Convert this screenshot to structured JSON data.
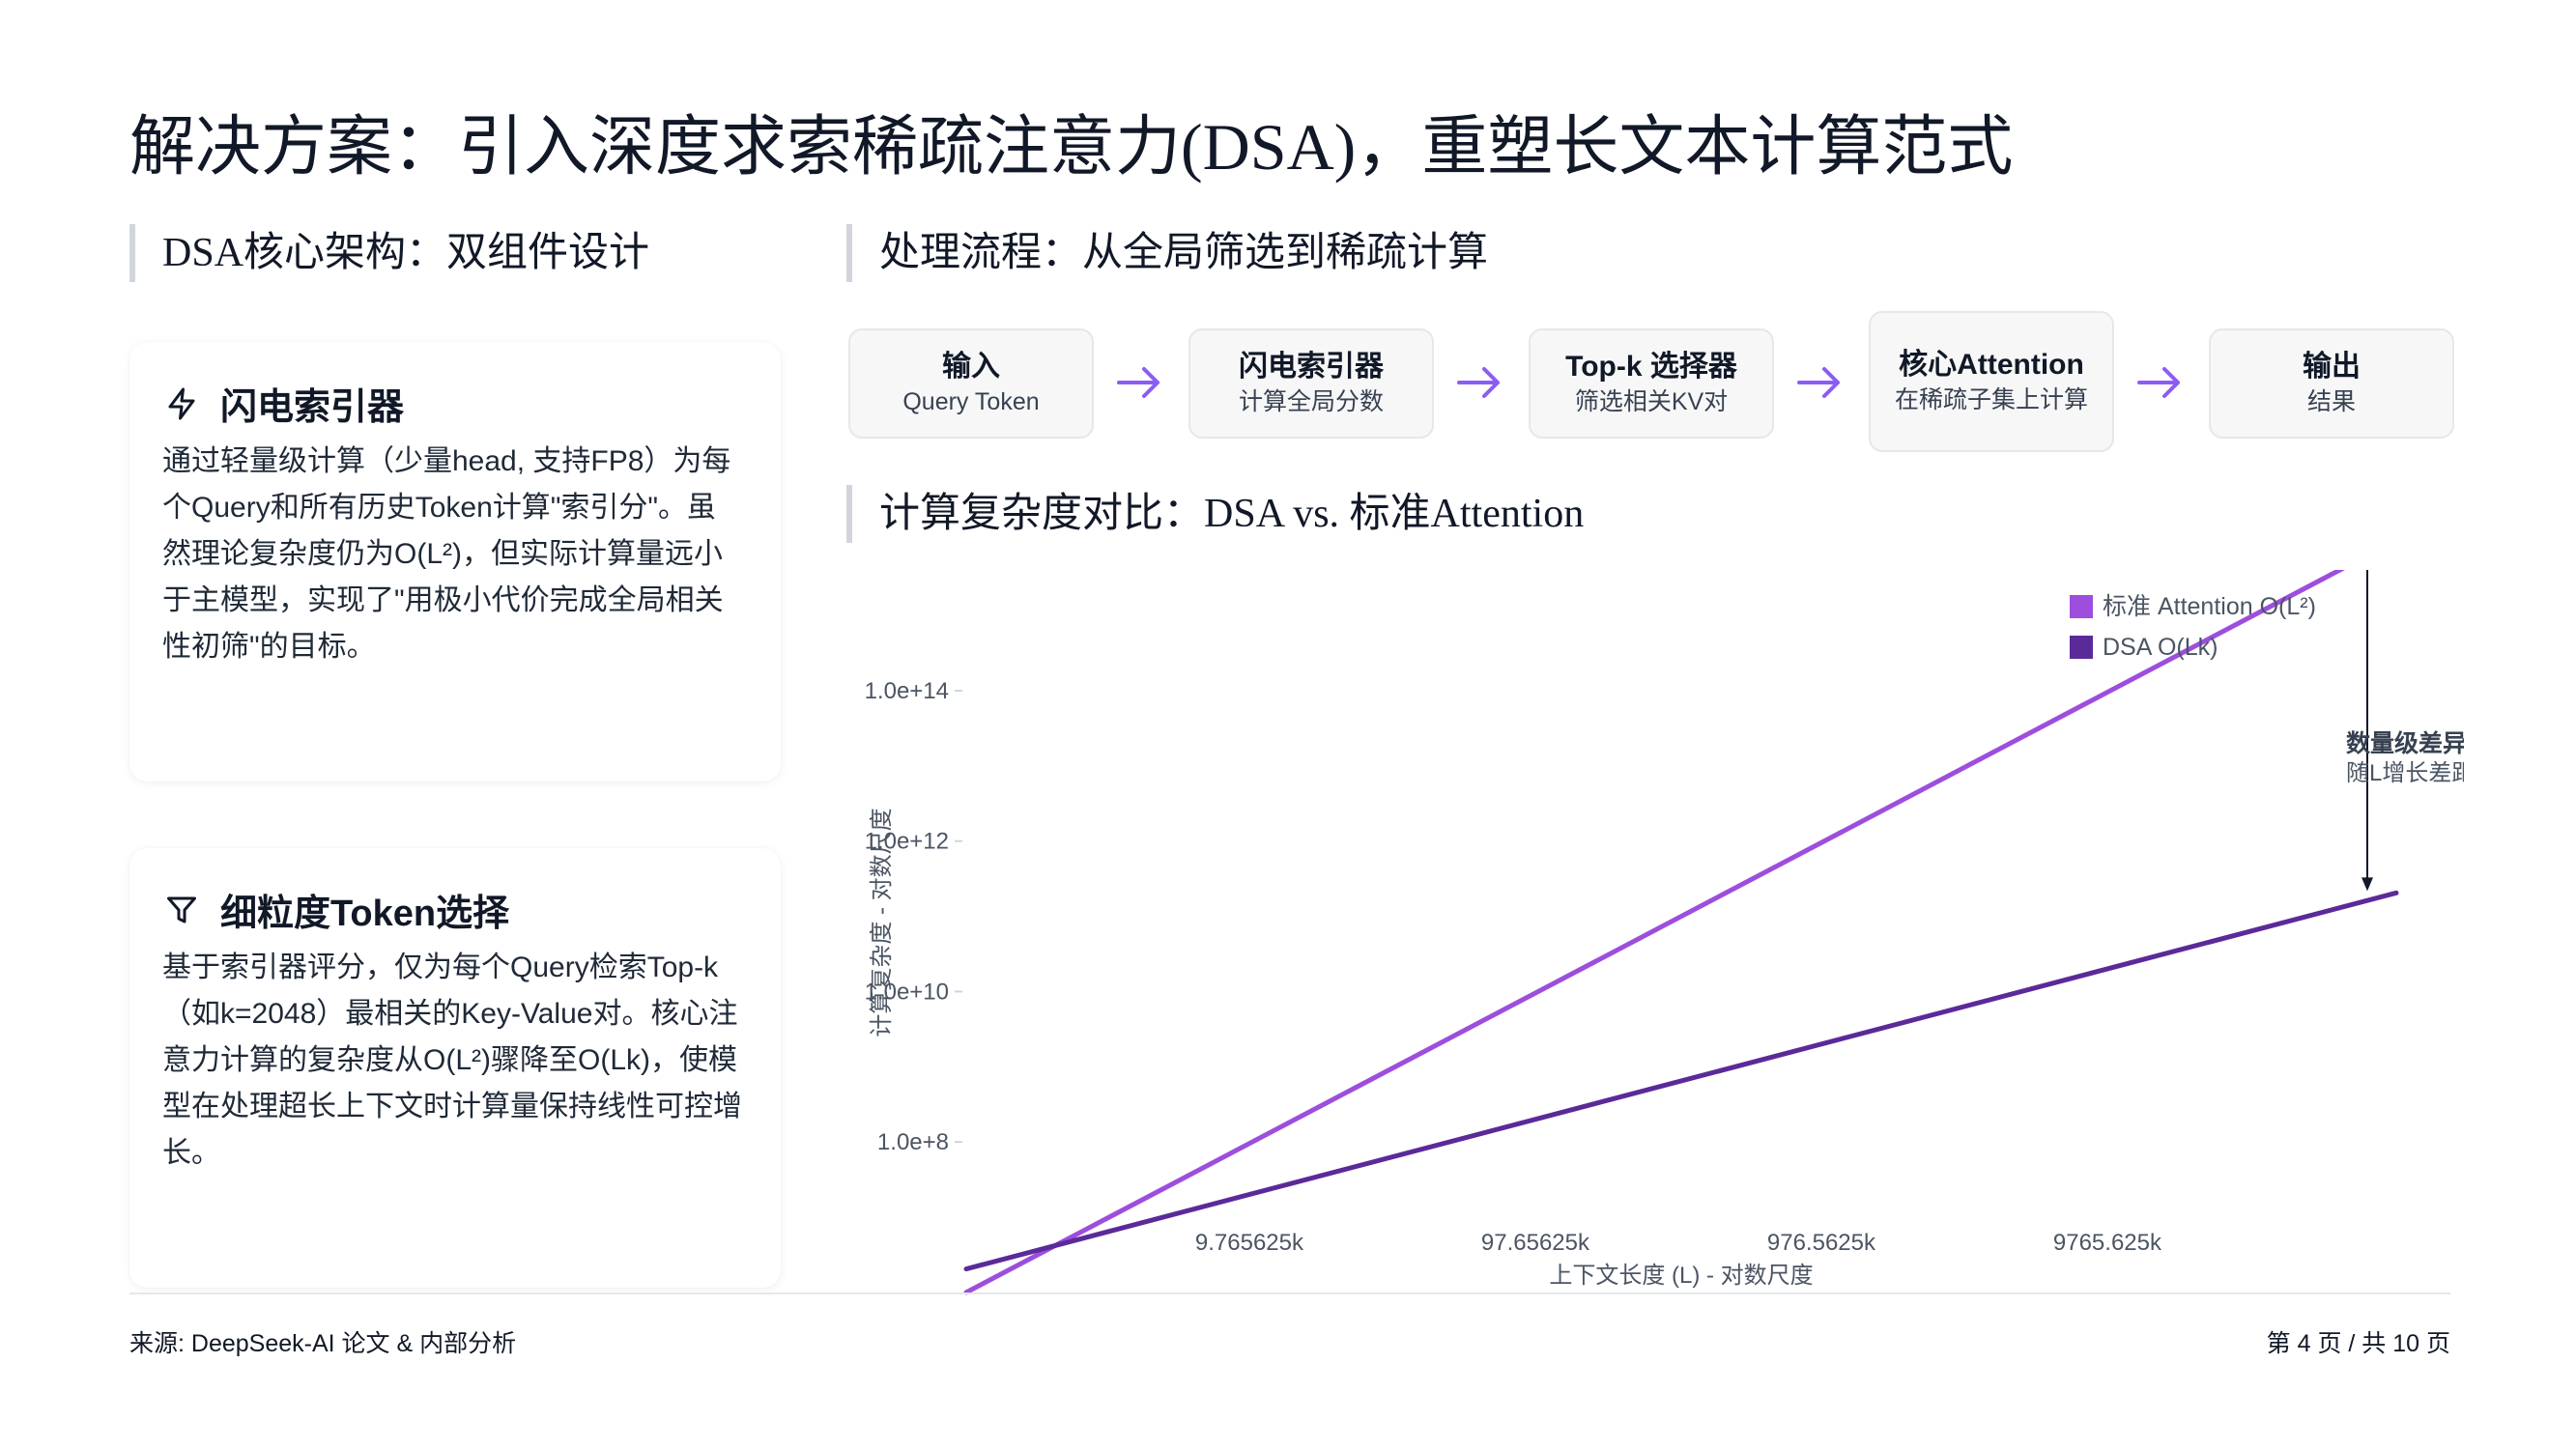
{
  "page": {
    "title": "解决方案：引入深度求索稀疏注意力(DSA)，重塑长文本计算范式"
  },
  "left": {
    "heading": "DSA核心架构：双组件设计",
    "cards": [
      {
        "icon": "lightning-icon",
        "title": "闪电索引器",
        "body": "通过轻量级计算（少量head, 支持FP8）为每个Query和所有历史Token计算\"索引分\"。虽然理论复杂度仍为O(L²)，但实际计算量远小于主模型，实现了\"用极小代价完成全局相关性初筛\"的目标。"
      },
      {
        "icon": "filter-icon",
        "title": "细粒度Token选择",
        "body": "基于索引器评分，仅为每个Query检索Top-k（如k=2048）最相关的Key-Value对。核心注意力计算的复杂度从O(L²)骤降至O(Lk)，使模型在处理超长上下文时计算量保持线性可控增长。"
      }
    ]
  },
  "flow": {
    "heading": "处理流程：从全局筛选到稀疏计算",
    "steps": [
      {
        "title": "输入",
        "sub": "Query Token"
      },
      {
        "title": "闪电索引器",
        "sub": "计算全局分数"
      },
      {
        "title": "Top-k 选择器",
        "sub": "筛选相关KV对"
      },
      {
        "title": "核心Attention",
        "sub": "在稀疏子集上计算"
      },
      {
        "title": "输出",
        "sub": "结果"
      }
    ],
    "arrow_color": "#8b5cf6"
  },
  "chart_section": {
    "heading": "计算复杂度对比：DSA vs. 标准Attention"
  },
  "chart_data": {
    "type": "line",
    "x_scale": "log",
    "y_scale": "log",
    "xlabel": "上下文长度 (L) - 对数尺度",
    "ylabel": "计算复杂度 - 对数尺度",
    "x_ticks": [
      9765.625,
      97656.25,
      976562.5,
      9765625
    ],
    "x_tick_labels": [
      "9.765625k",
      "97.65625k",
      "976.5625k",
      "9765.625k"
    ],
    "y_ticks": [
      100000000,
      10000000000,
      1000000000000,
      100000000000000
    ],
    "y_tick_labels": [
      "1.0e+8",
      "1.0e+10",
      "1.0e+12",
      "1.0e+14"
    ],
    "xlim": [
      1000,
      100000000
    ],
    "ylim": [
      10000000,
      3000000000000000
    ],
    "grid": false,
    "legend": "top-right",
    "series": [
      {
        "name": "标准 Attention O(L²)",
        "color": "#9d4edd",
        "x": [
          1000,
          100000000
        ],
        "values": [
          1000000,
          10000000000000000
        ]
      },
      {
        "name": "DSA O(Lk)",
        "color": "#5b2a99",
        "x": [
          1000,
          100000000
        ],
        "values": [
          2048000,
          204800000000
        ]
      }
    ],
    "annotation": {
      "title": "数量级差异",
      "subtitle": "随L增长差距"
    }
  },
  "footer": {
    "source": "来源: DeepSeek-AI 论文 & 内部分析",
    "page_info": "第 4 页 / 共 10 页"
  }
}
